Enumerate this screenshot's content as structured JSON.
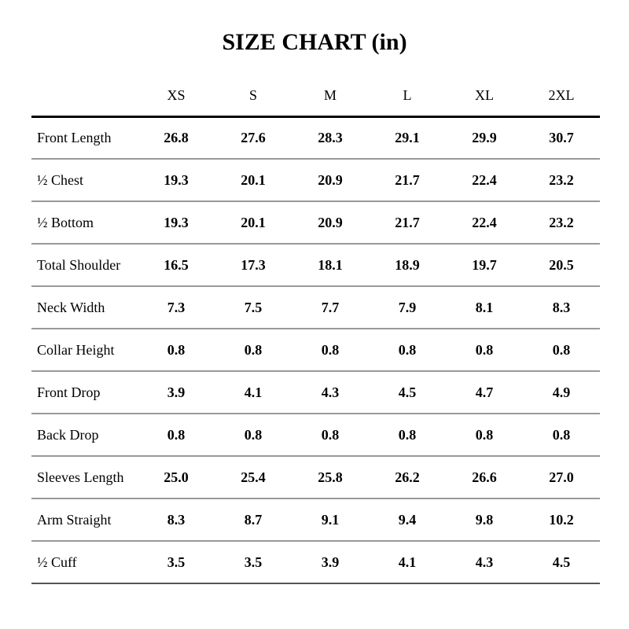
{
  "page_title": "SIZE CHART (in)",
  "unit": "in",
  "table": {
    "columns": [
      "XS",
      "S",
      "M",
      "L",
      "XL",
      "2XL"
    ],
    "rows": [
      {
        "label": "Front Length",
        "values": [
          "26.8",
          "27.6",
          "28.3",
          "29.1",
          "29.9",
          "30.7"
        ]
      },
      {
        "label": "½ Chest",
        "values": [
          "19.3",
          "20.1",
          "20.9",
          "21.7",
          "22.4",
          "23.2"
        ]
      },
      {
        "label": "½ Bottom",
        "values": [
          "19.3",
          "20.1",
          "20.9",
          "21.7",
          "22.4",
          "23.2"
        ]
      },
      {
        "label": "Total Shoulder",
        "values": [
          "16.5",
          "17.3",
          "18.1",
          "18.9",
          "19.7",
          "20.5"
        ]
      },
      {
        "label": "Neck Width",
        "values": [
          "7.3",
          "7.5",
          "7.7",
          "7.9",
          "8.1",
          "8.3"
        ]
      },
      {
        "label": "Collar Height",
        "values": [
          "0.8",
          "0.8",
          "0.8",
          "0.8",
          "0.8",
          "0.8"
        ]
      },
      {
        "label": "Front Drop",
        "values": [
          "3.9",
          "4.1",
          "4.3",
          "4.5",
          "4.7",
          "4.9"
        ]
      },
      {
        "label": "Back Drop",
        "values": [
          "0.8",
          "0.8",
          "0.8",
          "0.8",
          "0.8",
          "0.8"
        ]
      },
      {
        "label": "Sleeves Length",
        "values": [
          "25.0",
          "25.4",
          "25.8",
          "26.2",
          "26.6",
          "27.0"
        ]
      },
      {
        "label": "Arm Straight",
        "values": [
          "8.3",
          "8.7",
          "9.1",
          "9.4",
          "9.8",
          "10.2"
        ]
      },
      {
        "label": "½ Cuff",
        "values": [
          "3.5",
          "3.5",
          "3.9",
          "4.1",
          "4.3",
          "4.5"
        ]
      }
    ]
  },
  "chart_data": {
    "type": "table",
    "title": "SIZE CHART (in)",
    "columns": [
      "XS",
      "S",
      "M",
      "L",
      "XL",
      "2XL"
    ],
    "row_labels": [
      "Front Length",
      "½ Chest",
      "½ Bottom",
      "Total Shoulder",
      "Neck Width",
      "Collar Height",
      "Front Drop",
      "Back Drop",
      "Sleeves Length",
      "Arm Straight",
      "½ Cuff"
    ],
    "values": [
      [
        26.8,
        27.6,
        28.3,
        29.1,
        29.9,
        30.7
      ],
      [
        19.3,
        20.1,
        20.9,
        21.7,
        22.4,
        23.2
      ],
      [
        19.3,
        20.1,
        20.9,
        21.7,
        22.4,
        23.2
      ],
      [
        16.5,
        17.3,
        18.1,
        18.9,
        19.7,
        20.5
      ],
      [
        7.3,
        7.5,
        7.7,
        7.9,
        8.1,
        8.3
      ],
      [
        0.8,
        0.8,
        0.8,
        0.8,
        0.8,
        0.8
      ],
      [
        3.9,
        4.1,
        4.3,
        4.5,
        4.7,
        4.9
      ],
      [
        0.8,
        0.8,
        0.8,
        0.8,
        0.8,
        0.8
      ],
      [
        25.0,
        25.4,
        25.8,
        26.2,
        26.6,
        27.0
      ],
      [
        8.3,
        8.7,
        9.1,
        9.4,
        9.8,
        10.2
      ],
      [
        3.5,
        3.5,
        3.9,
        4.1,
        4.3,
        4.5
      ]
    ]
  },
  "colors": {
    "background": "#ffffff",
    "text": "#000000",
    "header_rule": "#000000",
    "row_rule": "#999999",
    "bottom_rule": "#555555"
  }
}
